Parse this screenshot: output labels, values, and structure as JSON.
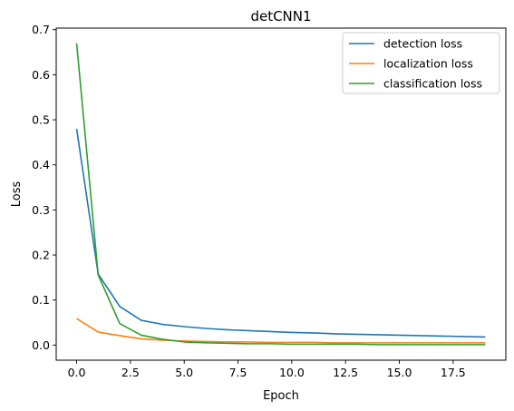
{
  "chart_data": {
    "type": "line",
    "title": "detCNN1",
    "xlabel": "Epoch",
    "ylabel": "Loss",
    "xlim": [
      -0.95,
      19.95
    ],
    "ylim": [
      -0.0335,
      0.7035
    ],
    "xticks": [
      0,
      2.5,
      5,
      7.5,
      10,
      12.5,
      15,
      17.5
    ],
    "xtick_labels": [
      "0.0",
      "2.5",
      "5.0",
      "7.5",
      "10.0",
      "12.5",
      "15.0",
      "17.5"
    ],
    "yticks": [
      0,
      0.1,
      0.2,
      0.3,
      0.4,
      0.5,
      0.6,
      0.7
    ],
    "ytick_labels": [
      "0.0",
      "0.1",
      "0.2",
      "0.3",
      "0.4",
      "0.5",
      "0.6",
      "0.7"
    ],
    "grid": false,
    "legend_position": "top-right",
    "x": [
      0,
      1,
      2,
      3,
      4,
      5,
      6,
      7,
      8,
      9,
      10,
      11,
      12,
      13,
      14,
      15,
      16,
      17,
      18,
      19
    ],
    "series": [
      {
        "name": "detection loss",
        "color": "#1f77b4",
        "values": [
          0.48,
          0.158,
          0.086,
          0.055,
          0.046,
          0.041,
          0.037,
          0.034,
          0.032,
          0.03,
          0.028,
          0.027,
          0.025,
          0.024,
          0.023,
          0.022,
          0.021,
          0.02,
          0.019,
          0.018
        ]
      },
      {
        "name": "localization loss",
        "color": "#ff7f0e",
        "values": [
          0.059,
          0.029,
          0.021,
          0.014,
          0.011,
          0.009,
          0.008,
          0.007,
          0.007,
          0.006,
          0.006,
          0.006,
          0.005,
          0.005,
          0.005,
          0.005,
          0.005,
          0.005,
          0.005,
          0.005
        ]
      },
      {
        "name": "classification loss",
        "color": "#2ca02c",
        "values": [
          0.67,
          0.156,
          0.048,
          0.022,
          0.013,
          0.007,
          0.005,
          0.004,
          0.003,
          0.003,
          0.002,
          0.002,
          0.002,
          0.002,
          0.001,
          0.001,
          0.001,
          0.001,
          0.001,
          0.001
        ]
      }
    ]
  }
}
